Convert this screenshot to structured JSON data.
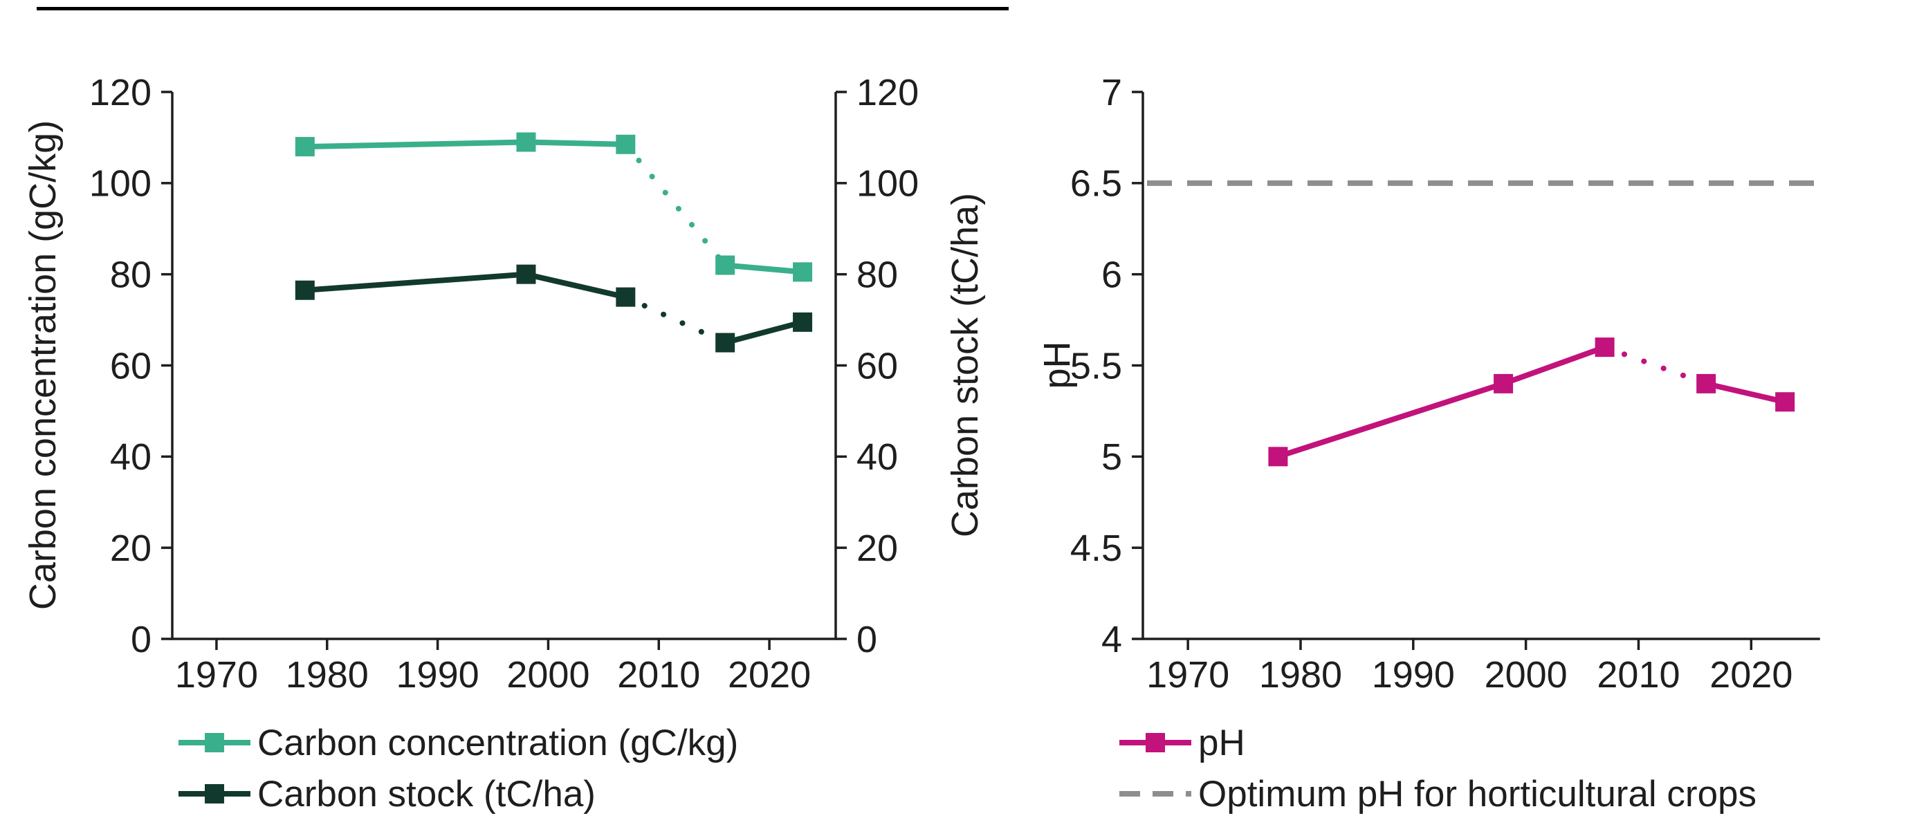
{
  "page": {
    "background": "#ffffff",
    "text_color": "#1e1e1e",
    "axis_color": "#1e1e1e",
    "top_rule_color": "#000000"
  },
  "chart_data": [
    {
      "type": "line",
      "title": "",
      "x": [
        1978,
        1998,
        2007,
        2016,
        2023
      ],
      "series": [
        {
          "name": "Carbon concentration (gC/kg)",
          "values": [
            108,
            109,
            108.5,
            82,
            80.5
          ],
          "color": "#3aaf8b",
          "marker": "square",
          "dotted_segments": [
            2
          ]
        },
        {
          "name": "Carbon stock (tC/ha)",
          "values": [
            76.5,
            80,
            75,
            65,
            69.5
          ],
          "color": "#12392d",
          "marker": "square",
          "dotted_segments": [
            2
          ]
        }
      ],
      "xlabel": "",
      "ylabel_left": "Carbon concentration (gC/kg)",
      "ylabel_right": "Carbon stock (tC/ha)",
      "xlim": [
        1966,
        2026
      ],
      "ylim": [
        0,
        120
      ],
      "xticks": [
        1970,
        1980,
        1990,
        2000,
        2010,
        2020
      ],
      "yticks": [
        0,
        20,
        40,
        60,
        80,
        100,
        120
      ],
      "ytick_labels": [
        "0",
        "20",
        "40",
        "60",
        "80",
        "100",
        "120"
      ],
      "right_axis": true,
      "grid": false,
      "legend_position": "bottom-left"
    },
    {
      "type": "line",
      "title": "",
      "x": [
        1978,
        1998,
        2007,
        2016,
        2023
      ],
      "series": [
        {
          "name": "pH",
          "values": [
            5.0,
            5.4,
            5.6,
            5.4,
            5.3
          ],
          "color": "#c2127b",
          "marker": "square",
          "dotted_segments": [
            2
          ]
        }
      ],
      "reference_line": {
        "value": 6.5,
        "label": "Optimum pH for horticultural crops",
        "color": "#8e8e8e",
        "style": "dashed"
      },
      "xlabel": "",
      "ylabel": "pH",
      "xlim": [
        1966,
        2026
      ],
      "ylim": [
        4,
        7
      ],
      "xticks": [
        1970,
        1980,
        1990,
        2000,
        2010,
        2020
      ],
      "yticks": [
        4,
        4.5,
        5,
        5.5,
        6,
        6.5,
        7
      ],
      "ytick_labels": [
        "4",
        "4.5",
        "5",
        "5.5",
        "6",
        "6.5",
        "7"
      ],
      "right_axis": false,
      "grid": false,
      "legend_position": "bottom-left"
    }
  ]
}
